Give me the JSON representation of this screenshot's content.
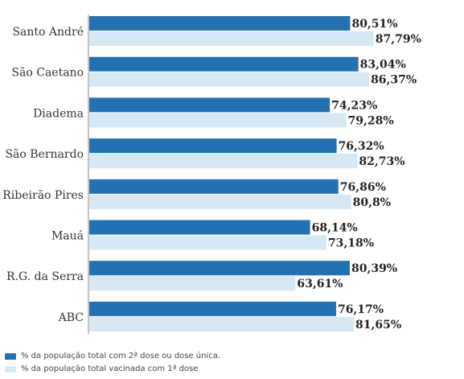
{
  "colors": {
    "dose2": "#2272b3",
    "dose1": "#d5e8f3",
    "axis": "#888888"
  },
  "legend": {
    "dose2": "% da população total com 2ª dose ou dose única.",
    "dose1": "% da população total vacinada com 1ª dose"
  },
  "chart_data": {
    "type": "bar",
    "orientation": "horizontal",
    "categories": [
      "Santo André",
      "São Caetano",
      "Diadema",
      "São Bernardo",
      "Ribeirão Pires",
      "Mauá",
      "R.G. da Serra",
      "ABC"
    ],
    "series": [
      {
        "name": "% da população total com 2ª dose ou dose única.",
        "values": [
          80.51,
          83.04,
          74.23,
          76.32,
          76.86,
          68.14,
          80.39,
          76.17
        ],
        "labels": [
          "80,51%",
          "83,04%",
          "74,23%",
          "76,32%",
          "76,86%",
          "68,14%",
          "80,39%",
          "76,17%"
        ]
      },
      {
        "name": "% da população total vacinada com 1ª dose",
        "values": [
          87.79,
          86.37,
          79.28,
          82.73,
          80.8,
          73.18,
          63.61,
          81.65
        ],
        "labels": [
          "87,79%",
          "86,37%",
          "79,28%",
          "82,73%",
          "80,8%",
          "73,18%",
          "63,61%",
          "81,65%"
        ]
      }
    ],
    "legend_position": "bottom-left",
    "grid": false
  }
}
